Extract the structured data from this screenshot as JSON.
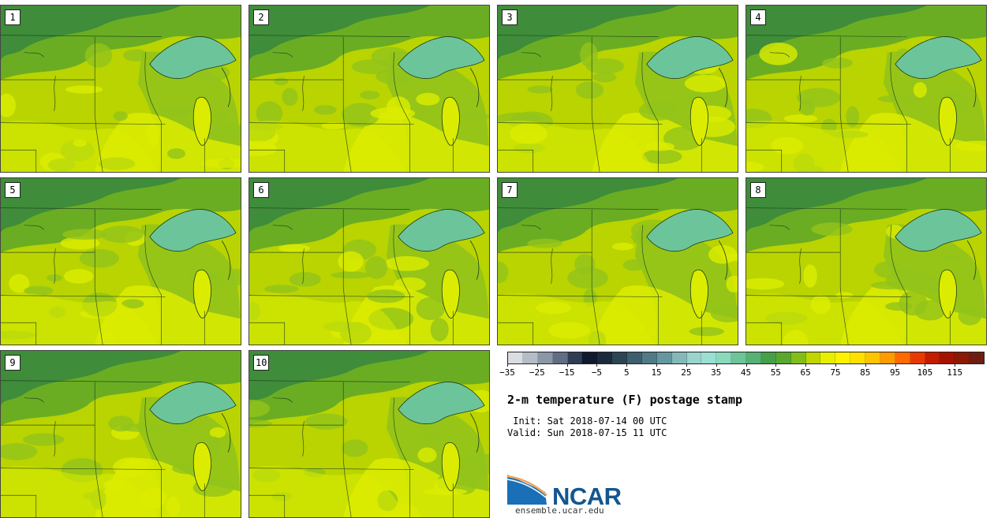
{
  "figure": {
    "title": "2-m temperature (F) postage stamp",
    "init_label": " Init: Sat 2018-07-14 00 UTC",
    "valid_label": "Valid: Sun 2018-07-15 11 UTC",
    "logo_text": "NCAR",
    "logo_url": "ensemble.ucar.edu"
  },
  "stamps": [
    {
      "label": "1"
    },
    {
      "label": "2"
    },
    {
      "label": "3"
    },
    {
      "label": "4"
    },
    {
      "label": "5"
    },
    {
      "label": "6"
    },
    {
      "label": "7"
    },
    {
      "label": "8"
    },
    {
      "label": "9"
    },
    {
      "label": "10"
    }
  ],
  "colorbar": {
    "units": "F",
    "range": [
      -35,
      120
    ],
    "step": 5,
    "tick_labels": [
      "−35",
      "−25",
      "−15",
      "−5",
      "5",
      "15",
      "25",
      "35",
      "45",
      "55",
      "65",
      "75",
      "85",
      "95",
      "105",
      "115"
    ],
    "colors": [
      "#d9dde2",
      "#b4bcc6",
      "#8a97a6",
      "#5f6e82",
      "#2f3d55",
      "#10192e",
      "#1c2a3c",
      "#2c4552",
      "#3d5e6c",
      "#4f7a86",
      "#66979f",
      "#84b8b9",
      "#9ad4cc",
      "#99dfd2",
      "#8ad9bd",
      "#6cc498",
      "#57b074",
      "#45a048",
      "#58a82d",
      "#82bd19",
      "#bfd600",
      "#e7ee00",
      "#fff200",
      "#ffe000",
      "#ffc400",
      "#ff9a00",
      "#ff6a00",
      "#e83a00",
      "#c41c00",
      "#a51400",
      "#8a1a06",
      "#6e1e10"
    ]
  },
  "map_colors": {
    "base": "#b9d400",
    "warm": "#dcec00",
    "cool": "#92c31a",
    "cooler": "#6aad23",
    "cold": "#3f8c3a",
    "lake": "#6cc59a"
  }
}
